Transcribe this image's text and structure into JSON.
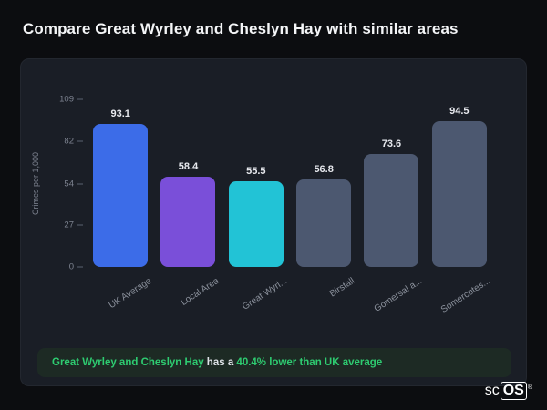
{
  "page": {
    "title": "Compare Great Wyrley and Cheslyn Hay with similar areas"
  },
  "chart_data": {
    "type": "bar",
    "title": "",
    "xlabel": "",
    "ylabel": "Crimes per 1,000",
    "categories": [
      "UK Average",
      "Local Area",
      "Great Wyrl...",
      "Birstall",
      "Gomersal a...",
      "Somercotes..."
    ],
    "values": [
      93.1,
      58.4,
      55.5,
      56.8,
      73.6,
      94.5
    ],
    "bar_colors": [
      "#3c6ce8",
      "#7a4fd9",
      "#22c3d6",
      "#4c5870",
      "#4c5870",
      "#4c5870"
    ],
    "yticks": [
      0,
      27,
      54,
      82,
      109
    ],
    "ylim": [
      0,
      109
    ],
    "grid": false,
    "legend": false,
    "value_labels": true
  },
  "note": {
    "part1": "Great Wyrley and Cheslyn Hay",
    "part2": " has a ",
    "part3": "40.4% lower than UK average",
    "accent_color": "#2ecc71"
  },
  "logo": {
    "prefix": "sc",
    "suffix": "OS",
    "registered": "®"
  },
  "colors": {
    "page_bg": "#0c0d10",
    "card_bg": "#1a1e26",
    "note_bg": "#1d2a24",
    "accent_green": "#2ecc71",
    "bar_blue": "#3c6ce8",
    "bar_purple": "#7a4fd9",
    "bar_cyan": "#22c3d6",
    "bar_gray": "#4c5870"
  }
}
